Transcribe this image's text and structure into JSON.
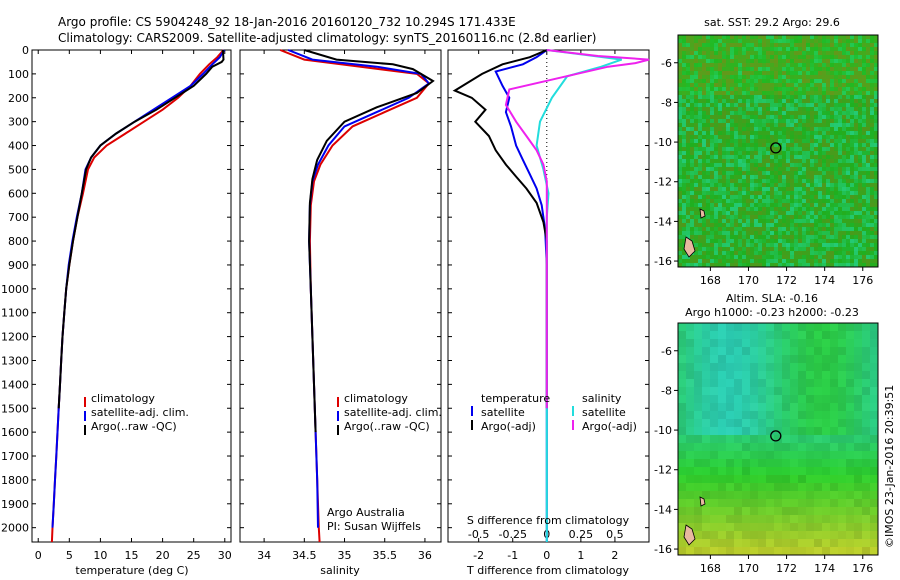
{
  "header": {
    "line1": "Argo profile: CS 5904248_92 18-Jan-2016 20160120_732 10.294S 171.433E",
    "line2": "Climatology: CARS2009. Satellite-adjusted climatology: synTS_20160116.nc (2.8d earlier)"
  },
  "chart_data": [
    {
      "type": "line",
      "name": "temperature",
      "xlabel": "temperature (deg C)",
      "ylabel": "",
      "xlim": [
        -1,
        31
      ],
      "ylim": [
        2060,
        0
      ],
      "xticks": [
        "0",
        "5",
        "10",
        "15",
        "20",
        "25",
        "30"
      ],
      "yticks": [
        "0",
        "100",
        "200",
        "300",
        "400",
        "500",
        "600",
        "700",
        "800",
        "900",
        "1000",
        "1100",
        "1200",
        "1300",
        "1400",
        "1500",
        "1600",
        "1700",
        "1800",
        "1900",
        "2000"
      ],
      "legend": [
        "climatology",
        "satellite-adj. clim.",
        "Argo(..raw -QC)"
      ],
      "series": [
        {
          "name": "climatology",
          "color": "#dd0000",
          "points": [
            [
              29.8,
              0
            ],
            [
              28.8,
              30
            ],
            [
              27.5,
              60
            ],
            [
              26,
              100
            ],
            [
              24.5,
              150
            ],
            [
              22.5,
              200
            ],
            [
              20,
              250
            ],
            [
              17,
              300
            ],
            [
              14,
              350
            ],
            [
              11,
              400
            ],
            [
              9,
              450
            ],
            [
              8,
              500
            ],
            [
              7.2,
              600
            ],
            [
              6.3,
              700
            ],
            [
              5.6,
              800
            ],
            [
              5,
              900
            ],
            [
              4.5,
              1000
            ],
            [
              4.2,
              1100
            ],
            [
              3.9,
              1200
            ],
            [
              3.7,
              1300
            ],
            [
              3.5,
              1400
            ],
            [
              3.3,
              1500
            ],
            [
              3.1,
              1600
            ],
            [
              2.9,
              1700
            ],
            [
              2.7,
              1800
            ],
            [
              2.5,
              1900
            ],
            [
              2.3,
              2000
            ],
            [
              2.2,
              2060
            ]
          ]
        },
        {
          "name": "satellite-adj. clim.",
          "color": "#0000ee",
          "points": [
            [
              29.9,
              0
            ],
            [
              29.2,
              30
            ],
            [
              28,
              60
            ],
            [
              26.5,
              100
            ],
            [
              24.5,
              150
            ],
            [
              21.5,
              200
            ],
            [
              18.5,
              250
            ],
            [
              15.5,
              300
            ],
            [
              12.5,
              350
            ],
            [
              10,
              400
            ],
            [
              8.5,
              450
            ],
            [
              7.6,
              500
            ],
            [
              7,
              600
            ],
            [
              6.2,
              700
            ],
            [
              5.5,
              800
            ],
            [
              4.9,
              900
            ],
            [
              4.5,
              1000
            ],
            [
              4.2,
              1100
            ],
            [
              3.9,
              1200
            ],
            [
              3.7,
              1300
            ],
            [
              3.5,
              1400
            ],
            [
              3.3,
              1500
            ],
            [
              3.1,
              1600
            ],
            [
              2.9,
              1700
            ],
            [
              2.7,
              1800
            ],
            [
              2.5,
              1900
            ],
            [
              2.3,
              2000
            ]
          ]
        },
        {
          "name": "Argo(..raw -QC)",
          "color": "#000000",
          "points": [
            [
              29.7,
              0
            ],
            [
              29.8,
              40
            ],
            [
              29.5,
              50
            ],
            [
              28,
              70
            ],
            [
              27,
              100
            ],
            [
              25,
              150
            ],
            [
              22,
              200
            ],
            [
              19,
              250
            ],
            [
              15.5,
              300
            ],
            [
              12.5,
              350
            ],
            [
              10,
              400
            ],
            [
              8.5,
              450
            ],
            [
              7.7,
              500
            ],
            [
              7,
              600
            ],
            [
              6.3,
              700
            ],
            [
              5.6,
              800
            ],
            [
              5,
              900
            ],
            [
              4.5,
              1000
            ],
            [
              4.2,
              1100
            ],
            [
              3.9,
              1200
            ],
            [
              3.7,
              1300
            ],
            [
              3.5,
              1400
            ],
            [
              3.3,
              1500
            ]
          ]
        }
      ]
    },
    {
      "type": "line",
      "name": "salinity",
      "xlabel": "salinity",
      "ylabel": "",
      "xlim": [
        33.7,
        36.2
      ],
      "ylim": [
        2060,
        0
      ],
      "xticks": [
        "34",
        "34.5",
        "35",
        "35.5",
        "36"
      ],
      "legend": [
        "climatology",
        "satellite-adj. clim.",
        "Argo(..raw -QC)"
      ],
      "annotations": [
        "Argo Australia",
        "PI: Susan Wijffels"
      ],
      "series": [
        {
          "name": "climatology",
          "color": "#dd0000",
          "points": [
            [
              34.2,
              0
            ],
            [
              34.5,
              40
            ],
            [
              35.2,
              70
            ],
            [
              35.9,
              100
            ],
            [
              36.05,
              140
            ],
            [
              35.9,
              200
            ],
            [
              35.5,
              260
            ],
            [
              35.1,
              320
            ],
            [
              34.85,
              400
            ],
            [
              34.7,
              480
            ],
            [
              34.62,
              550
            ],
            [
              34.58,
              650
            ],
            [
              34.57,
              800
            ],
            [
              34.58,
              1000
            ],
            [
              34.6,
              1200
            ],
            [
              34.62,
              1400
            ],
            [
              34.64,
              1600
            ],
            [
              34.66,
              1800
            ],
            [
              34.68,
              2000
            ],
            [
              34.69,
              2060
            ]
          ]
        },
        {
          "name": "satellite-adj. clim.",
          "color": "#0000ee",
          "points": [
            [
              34.3,
              0
            ],
            [
              34.6,
              40
            ],
            [
              35.4,
              70
            ],
            [
              35.95,
              100
            ],
            [
              36.05,
              140
            ],
            [
              35.8,
              200
            ],
            [
              35.4,
              260
            ],
            [
              35,
              320
            ],
            [
              34.8,
              400
            ],
            [
              34.67,
              480
            ],
            [
              34.6,
              550
            ],
            [
              34.57,
              650
            ],
            [
              34.56,
              800
            ],
            [
              34.58,
              1000
            ],
            [
              34.6,
              1200
            ],
            [
              34.62,
              1400
            ],
            [
              34.64,
              1600
            ],
            [
              34.66,
              1800
            ],
            [
              34.67,
              2000
            ]
          ]
        },
        {
          "name": "Argo(..raw -QC)",
          "color": "#000000",
          "points": [
            [
              34.5,
              0
            ],
            [
              34.9,
              40
            ],
            [
              35.6,
              60
            ],
            [
              35.85,
              80
            ],
            [
              36.1,
              130
            ],
            [
              35.9,
              180
            ],
            [
              35.4,
              240
            ],
            [
              35,
              300
            ],
            [
              34.78,
              380
            ],
            [
              34.66,
              460
            ],
            [
              34.6,
              540
            ],
            [
              34.57,
              640
            ],
            [
              34.56,
              800
            ],
            [
              34.58,
              1000
            ],
            [
              34.6,
              1200
            ],
            [
              34.62,
              1400
            ],
            [
              34.64,
              1600
            ]
          ]
        }
      ]
    },
    {
      "type": "line",
      "name": "difference from climatology",
      "xlabel": "T difference from climatology",
      "top_label": "S difference from climatology",
      "xlim": [
        -2.9,
        3
      ],
      "s_xticks": [
        "-0.5",
        "-0.25",
        "0",
        "0.25",
        "0.5"
      ],
      "xticks": [
        "-2",
        "-1",
        "0",
        "1",
        "2"
      ],
      "ylim": [
        2060,
        0
      ],
      "legend_temperature": [
        "temperature",
        "satellite",
        "Argo(-adj)"
      ],
      "legend_salinity": [
        "salinity",
        "satellite",
        "Argo(-adj)"
      ],
      "series": [
        {
          "name": "temperature satellite",
          "color": "#0000ee",
          "points": [
            [
              0,
              0
            ],
            [
              -0.3,
              30
            ],
            [
              -0.7,
              60
            ],
            [
              -1.5,
              90
            ],
            [
              -1.3,
              150
            ],
            [
              -1.1,
              200
            ],
            [
              -1.2,
              260
            ],
            [
              -1.05,
              320
            ],
            [
              -0.9,
              400
            ],
            [
              -0.7,
              460
            ],
            [
              -0.5,
              520
            ],
            [
              -0.3,
              580
            ],
            [
              -0.15,
              650
            ],
            [
              -0.05,
              750
            ],
            [
              0,
              900
            ],
            [
              0,
              2060
            ]
          ]
        },
        {
          "name": "temperature Argo(-adj)",
          "color": "#000000",
          "points": [
            [
              0,
              0
            ],
            [
              -0.5,
              30
            ],
            [
              -1.3,
              60
            ],
            [
              -1.9,
              100
            ],
            [
              -2.7,
              170
            ],
            [
              -2.2,
              200
            ],
            [
              -1.8,
              250
            ],
            [
              -2.1,
              300
            ],
            [
              -1.7,
              360
            ],
            [
              -1.5,
              420
            ],
            [
              -1.2,
              480
            ],
            [
              -0.9,
              530
            ],
            [
              -0.6,
              580
            ],
            [
              -0.3,
              640
            ],
            [
              -0.1,
              720
            ],
            [
              0,
              800
            ],
            [
              0,
              1500
            ]
          ]
        },
        {
          "name": "salinity satellite",
          "color": "#22dddd",
          "points": [
            [
              0,
              0
            ],
            [
              1.1,
              20
            ],
            [
              2.2,
              40
            ],
            [
              1.6,
              70
            ],
            [
              0.6,
              110
            ],
            [
              0.15,
              200
            ],
            [
              -0.2,
              300
            ],
            [
              -0.3,
              400
            ],
            [
              -0.1,
              500
            ],
            [
              0.05,
              600
            ],
            [
              0,
              700
            ],
            [
              0,
              2060
            ]
          ]
        },
        {
          "name": "salinity Argo(-adj)",
          "color": "#ee22ee",
          "points": [
            [
              0,
              0
            ],
            [
              1.5,
              25
            ],
            [
              3,
              40
            ],
            [
              2.6,
              55
            ],
            [
              1.8,
              70
            ],
            [
              -1.1,
              165
            ],
            [
              -1.2,
              230
            ],
            [
              -0.9,
              300
            ],
            [
              -0.6,
              360
            ],
            [
              -0.3,
              420
            ],
            [
              -0.1,
              480
            ],
            [
              0,
              550
            ],
            [
              0,
              1500
            ]
          ]
        }
      ]
    }
  ],
  "maps": {
    "sst_title": "sat. SST: 29.2  Argo: 29.6",
    "sla_title1": "Altim. SLA: -0.16",
    "sla_title2": "Argo h1000: -0.23  h2000: -0.23",
    "xticks": [
      "168",
      "170",
      "172",
      "174",
      "176"
    ],
    "sst_yticks": [
      "-6",
      "-8",
      "-10",
      "-12",
      "-14",
      "-16"
    ],
    "sla_yticks": [
      "-6",
      "-8",
      "-10",
      "-12",
      "-14",
      "-16"
    ],
    "marker": {
      "lon": 171.433,
      "lat": -10.294
    }
  },
  "footer": {
    "credit": "©IMOS 23-Jan-2016 20:39:51"
  }
}
